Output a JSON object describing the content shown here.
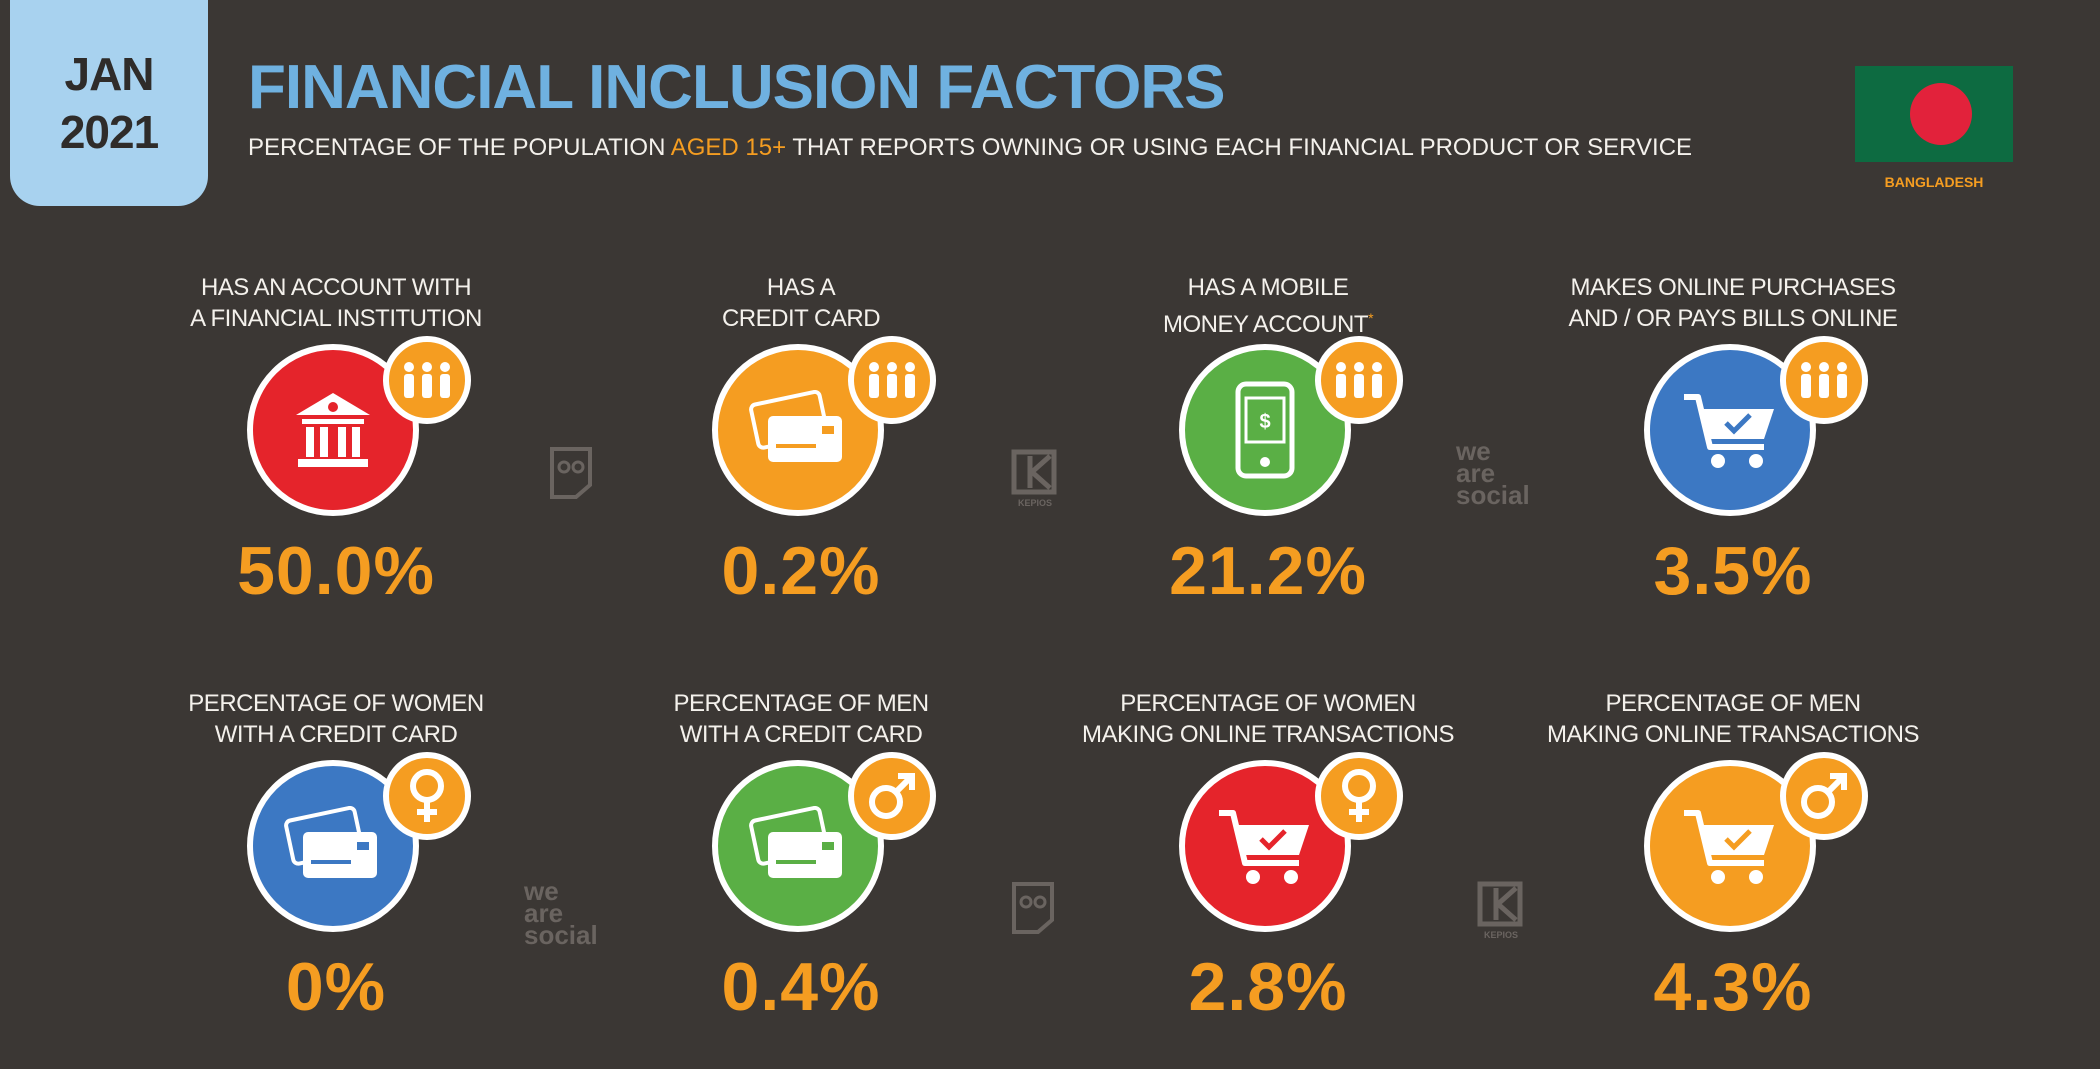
{
  "header": {
    "date_month": "JAN",
    "date_year": "2021",
    "title": "FINANCIAL INCLUSION FACTORS",
    "subtitle_pre": "PERCENTAGE OF THE POPULATION ",
    "subtitle_highlight": "AGED 15+",
    "subtitle_post": " THAT REPORTS OWNING OR USING EACH FINANCIAL PRODUCT OR SERVICE",
    "country": "BANGLADESH"
  },
  "colors": {
    "background": "#3b3734",
    "accent_orange": "#f59d21",
    "accent_blue": "#6fb1e0",
    "red": "#e5242b",
    "green": "#5aaf45",
    "blue": "#3c78c3",
    "flag_green": "#0d6b41",
    "flag_red": "#e2223b"
  },
  "row1": [
    {
      "label_1": "HAS AN ACCOUNT WITH",
      "label_2": "A FINANCIAL INSTITUTION",
      "value": "50.0%",
      "icon": "bank-icon",
      "badge_icon": "people-icon"
    },
    {
      "label_1": "HAS A",
      "label_2": "CREDIT CARD",
      "value": "0.2%",
      "icon": "credit-card-icon",
      "badge_icon": "people-icon"
    },
    {
      "label_1": "HAS A MOBILE",
      "label_2": "MONEY ACCOUNT",
      "label_mark": "*",
      "value": "21.2%",
      "icon": "mobile-money-icon",
      "badge_icon": "people-icon"
    },
    {
      "label_1": "MAKES ONLINE PURCHASES",
      "label_2": "AND / OR PAYS BILLS ONLINE",
      "value": "3.5%",
      "icon": "shopping-cart-icon",
      "badge_icon": "people-icon"
    }
  ],
  "row2": [
    {
      "label_1": "PERCENTAGE OF WOMEN",
      "label_2": "WITH A CREDIT CARD",
      "value": "0%",
      "icon": "credit-card-icon",
      "badge_icon": "female-icon"
    },
    {
      "label_1": "PERCENTAGE OF MEN",
      "label_2": "WITH A CREDIT CARD",
      "value": "0.4%",
      "icon": "credit-card-icon",
      "badge_icon": "male-icon"
    },
    {
      "label_1": "PERCENTAGE OF WOMEN",
      "label_2": "MAKING ONLINE TRANSACTIONS",
      "value": "2.8%",
      "icon": "shopping-cart-icon",
      "badge_icon": "female-icon"
    },
    {
      "label_1": "PERCENTAGE OF MEN",
      "label_2": "MAKING ONLINE TRANSACTIONS",
      "value": "4.3%",
      "icon": "shopping-cart-icon",
      "badge_icon": "male-icon"
    }
  ],
  "watermarks": {
    "wearesocial": [
      "we",
      "are",
      "social"
    ],
    "kepios": "KEPIOS"
  }
}
